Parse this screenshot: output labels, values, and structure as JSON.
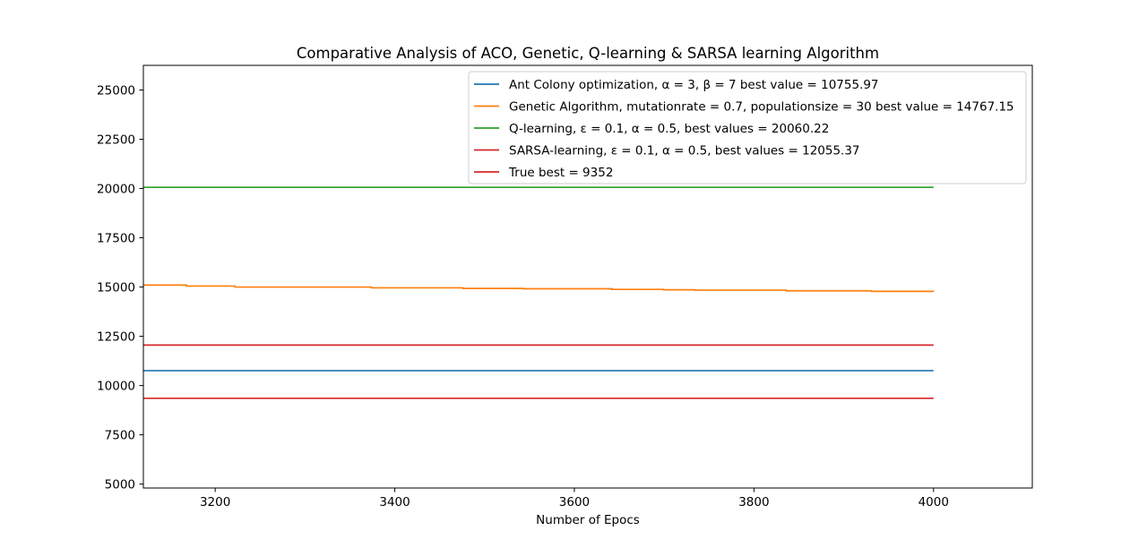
{
  "chart_data": {
    "type": "line",
    "title": "Comparative Analysis of ACO, Genetic, Q-learning & SARSA learning Algorithm",
    "xlabel": "Number of Epocs",
    "ylabel": "",
    "xlim": [
      3120,
      4110
    ],
    "ylim": [
      4800,
      26250
    ],
    "xticks": [
      3200,
      3400,
      3600,
      3800,
      4000
    ],
    "yticks": [
      5000,
      7500,
      10000,
      12500,
      15000,
      17500,
      20000,
      22500,
      25000
    ],
    "grid": false,
    "legend_position": "top-right",
    "series": [
      {
        "name": "Ant Colony optimization, α = 3, β = 7 best value = 10755.97",
        "color": "#1f77b4",
        "x": [
          3120,
          4000
        ],
        "y": [
          10755.97,
          10755.97
        ]
      },
      {
        "name": "Genetic Algorithm, mutationrate = 0.7, populationsize = 30 best value = 14767.15",
        "color": "#ff7f0e",
        "step": true,
        "x": [
          3120,
          3168,
          3222,
          3374,
          3476,
          3543,
          3642,
          3699,
          3734,
          3836,
          3931,
          4000
        ],
        "y": [
          15100,
          15050,
          15000,
          14960,
          14930,
          14910,
          14880,
          14860,
          14840,
          14810,
          14780,
          14767.15
        ]
      },
      {
        "name": "Q-learning, ε = 0.1, α = 0.5, best values = 20060.22",
        "color": "#2ca02c",
        "x": [
          3120,
          4000
        ],
        "y": [
          20060.22,
          20060.22
        ]
      },
      {
        "name": "SARSA-learning, ε = 0.1, α = 0.5, best values = 12055.37",
        "color": "#d62728",
        "x": [
          3120,
          4000
        ],
        "y": [
          12055.37,
          12055.37
        ]
      },
      {
        "name": "True best = 9352",
        "color": "#d62728",
        "x": [
          3120,
          4000
        ],
        "y": [
          9352,
          9352
        ]
      }
    ]
  }
}
